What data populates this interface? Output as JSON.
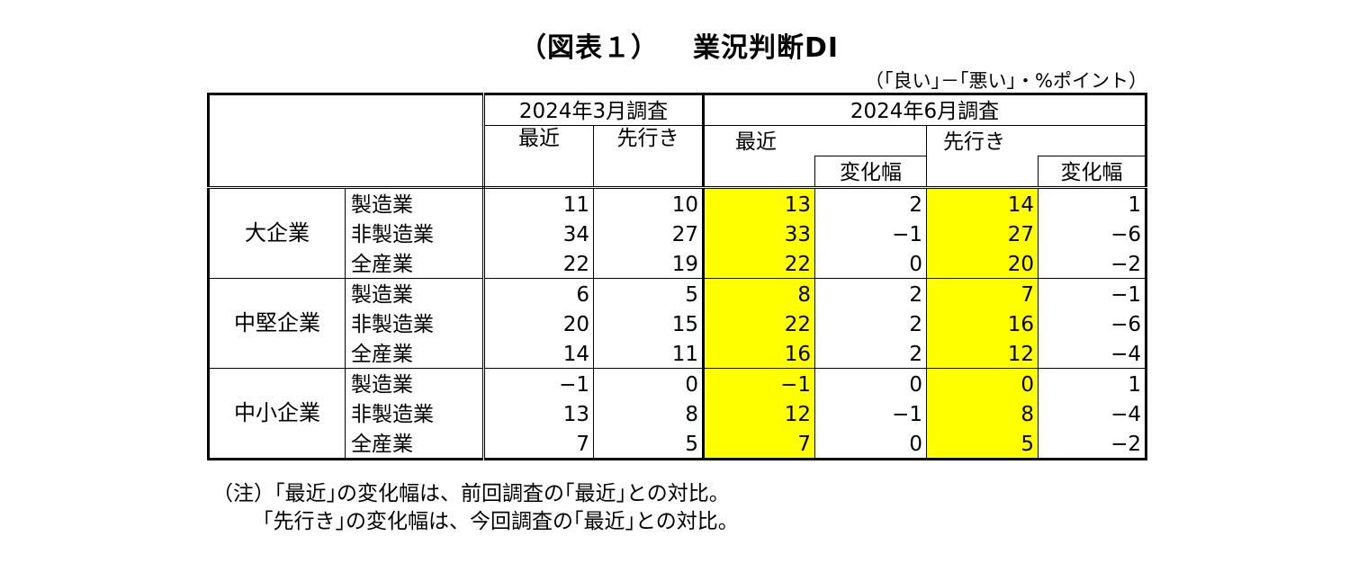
{
  "title": {
    "prefix": "（図表１）",
    "main": "業況判断DI"
  },
  "unit_note": "（｢良い｣－｢悪い｣・%ポイント）",
  "header": {
    "survey_march": "2024年3月調査",
    "survey_june": "2024年6月調査",
    "recent": "最近",
    "outlook": "先行き",
    "change": "変化幅"
  },
  "colors": {
    "highlight": "#ffff00",
    "border": "#000000"
  },
  "groups": [
    {
      "name": "大企業",
      "rows": [
        {
          "industry": "製造業",
          "mar_recent": "11",
          "mar_outlook": "10",
          "jun_recent": "13",
          "jun_recent_change": "2",
          "jun_outlook": "14",
          "jun_outlook_change": "1"
        },
        {
          "industry": "非製造業",
          "mar_recent": "34",
          "mar_outlook": "27",
          "jun_recent": "33",
          "jun_recent_change": "−1",
          "jun_outlook": "27",
          "jun_outlook_change": "−6"
        },
        {
          "industry": "全産業",
          "mar_recent": "22",
          "mar_outlook": "19",
          "jun_recent": "22",
          "jun_recent_change": "0",
          "jun_outlook": "20",
          "jun_outlook_change": "−2"
        }
      ]
    },
    {
      "name": "中堅企業",
      "rows": [
        {
          "industry": "製造業",
          "mar_recent": "6",
          "mar_outlook": "5",
          "jun_recent": "8",
          "jun_recent_change": "2",
          "jun_outlook": "7",
          "jun_outlook_change": "−1"
        },
        {
          "industry": "非製造業",
          "mar_recent": "20",
          "mar_outlook": "15",
          "jun_recent": "22",
          "jun_recent_change": "2",
          "jun_outlook": "16",
          "jun_outlook_change": "−6"
        },
        {
          "industry": "全産業",
          "mar_recent": "14",
          "mar_outlook": "11",
          "jun_recent": "16",
          "jun_recent_change": "2",
          "jun_outlook": "12",
          "jun_outlook_change": "−4"
        }
      ]
    },
    {
      "name": "中小企業",
      "rows": [
        {
          "industry": "製造業",
          "mar_recent": "−1",
          "mar_outlook": "0",
          "jun_recent": "−1",
          "jun_recent_change": "0",
          "jun_outlook": "0",
          "jun_outlook_change": "1"
        },
        {
          "industry": "非製造業",
          "mar_recent": "13",
          "mar_outlook": "8",
          "jun_recent": "12",
          "jun_recent_change": "−1",
          "jun_outlook": "8",
          "jun_outlook_change": "−4"
        },
        {
          "industry": "全産業",
          "mar_recent": "7",
          "mar_outlook": "5",
          "jun_recent": "7",
          "jun_recent_change": "0",
          "jun_outlook": "5",
          "jun_outlook_change": "−2"
        }
      ]
    }
  ],
  "notes": {
    "line1": "（注）｢最近｣の変化幅は、前回調査の｢最近｣との対比。",
    "line2": "｢先行き｣の変化幅は、今回調査の｢最近｣との対比。"
  }
}
